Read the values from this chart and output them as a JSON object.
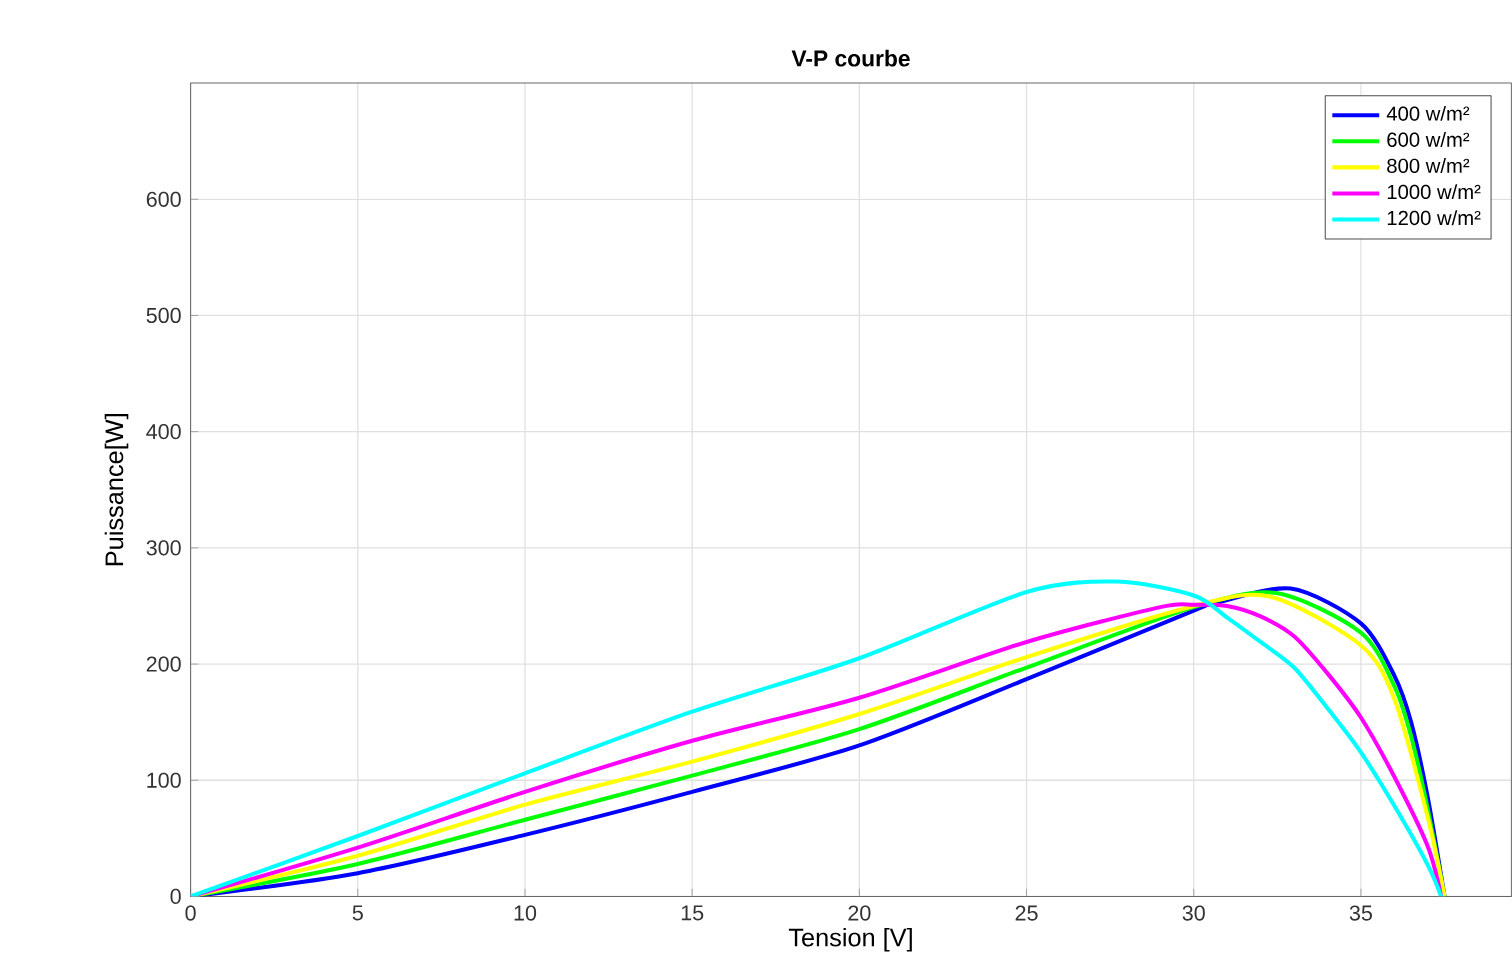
{
  "chart_data": {
    "type": "line",
    "title": "V-P courbe",
    "xlabel": "Tension [V]",
    "ylabel": "Puissance[W]",
    "xlim": [
      0,
      39.5
    ],
    "ylim": [
      0,
      700
    ],
    "xticks": [
      0,
      5,
      10,
      15,
      20,
      25,
      30,
      35
    ],
    "yticks": [
      0,
      100,
      200,
      300,
      400,
      500,
      600
    ],
    "grid": true,
    "legend": "top right",
    "line_style": "solid",
    "series": [
      {
        "name": "400 w/m²",
        "color": "#0000ff",
        "x": [
          0,
          5,
          10,
          15,
          20,
          25,
          30,
          30.6,
          32.9,
          35,
          36,
          36.5,
          37,
          37.5
        ],
        "values": [
          0,
          20,
          53,
          90,
          130,
          187,
          246,
          252,
          265,
          235,
          190,
          150,
          85,
          0
        ]
      },
      {
        "name": "600 w/m²",
        "color": "#00ff00",
        "x": [
          0,
          5,
          10,
          15,
          20,
          25,
          30,
          32.5,
          35,
          36,
          36.5,
          37,
          37.5
        ],
        "values": [
          0,
          28,
          66,
          104,
          144,
          197,
          249,
          261,
          227,
          181,
          138,
          75,
          0
        ]
      },
      {
        "name": "800 w/m²",
        "color": "#ffff00",
        "x": [
          0,
          5,
          10,
          15,
          20,
          25,
          30,
          32.3,
          35,
          36,
          37,
          37.5
        ],
        "values": [
          0,
          35,
          79,
          116,
          157,
          206,
          250,
          258,
          216,
          170,
          68,
          0
        ]
      },
      {
        "name": "1000 w/m²",
        "color": "#ff00ff",
        "x": [
          0,
          5,
          10,
          15,
          20,
          25,
          29,
          30,
          31,
          32,
          33,
          34,
          35,
          36,
          37,
          37.4
        ],
        "values": [
          0,
          42,
          90,
          134,
          171,
          219,
          249,
          251,
          250,
          241,
          224,
          192,
          154,
          103,
          43,
          0
        ]
      },
      {
        "name": "1200 w/m²",
        "color": "#00ffff",
        "x": [
          0,
          5,
          10,
          15,
          20,
          25,
          27.7,
          30,
          31,
          32,
          33,
          34,
          35,
          36,
          37,
          37.4
        ],
        "values": [
          0,
          52,
          106,
          159,
          205,
          262,
          271,
          259,
          240,
          219,
          197,
          162,
          124,
          78,
          27,
          0
        ]
      }
    ]
  }
}
